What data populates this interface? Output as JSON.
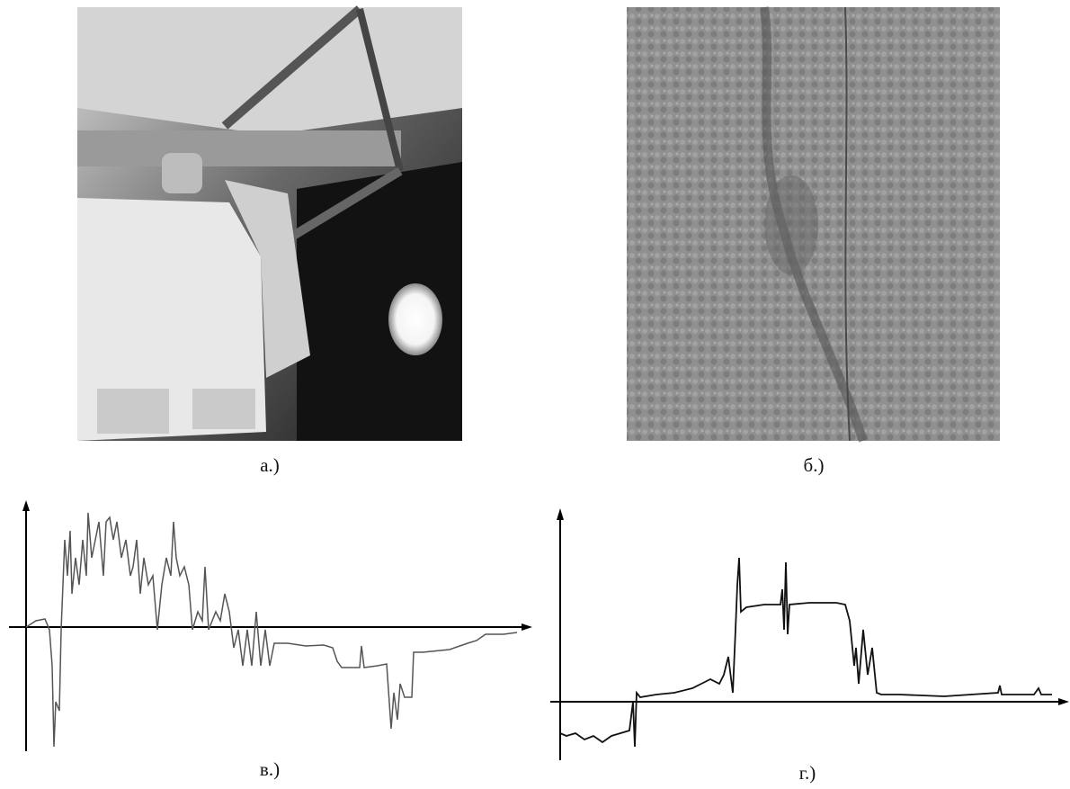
{
  "figure": {
    "panels": [
      {
        "label": "а.)"
      },
      {
        "label": "б.)"
      },
      {
        "label": "в.)"
      },
      {
        "label": "г.)"
      }
    ]
  }
}
